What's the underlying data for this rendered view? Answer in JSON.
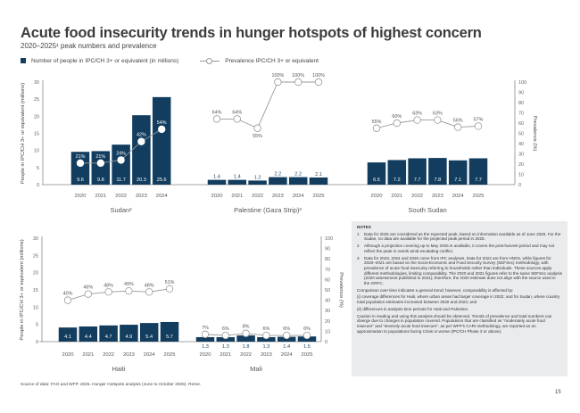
{
  "header": {
    "title": "Acute food insecurity trends in hunger hotspots of highest concern",
    "subtitle": "2020–2025¹ peak numbers and prevalence"
  },
  "legend": {
    "bars": "Number of people in IPC/CH 3+ or equivalent (in millions)",
    "line": "Prevalence IPC/CH 3+ or equivalent"
  },
  "colors": {
    "bar": "#123d5e",
    "line": "#999999"
  },
  "chart_data": [
    {
      "type": "bar+line",
      "title": "",
      "left_axis": {
        "label": "People in IPC/CH 3+ or equivalent (millions)",
        "ylim": [
          0,
          30
        ],
        "ticks": [
          "0",
          "5",
          "10",
          "15",
          "20",
          "25",
          "30"
        ]
      },
      "right_axis": {
        "label": "Prevalence (%)",
        "ylim": [
          0,
          100
        ],
        "ticks": [
          "0",
          "10",
          "20",
          "30",
          "40",
          "50",
          "60",
          "70",
          "80",
          "90",
          "100"
        ]
      },
      "groups": [
        {
          "name": "Sudan²",
          "years": [
            "2020",
            "2021",
            "2022",
            "2023",
            "2024"
          ],
          "people": [
            9.6,
            9.8,
            11.7,
            20.3,
            25.6
          ],
          "prevalence": [
            21,
            21,
            24,
            42,
            54
          ]
        },
        {
          "name": "Palestine (Gaza Strip)³",
          "years": [
            "2020",
            "2021",
            "2022",
            "2023",
            "2024",
            "2025"
          ],
          "people": [
            1.4,
            1.4,
            1.2,
            2.2,
            2.2,
            2.1
          ],
          "prevalence": [
            64,
            64,
            55,
            100,
            100,
            100
          ]
        },
        {
          "name": "South Sudan",
          "years": [
            "2020",
            "2021",
            "2022",
            "2023",
            "2024",
            "2025"
          ],
          "people": [
            6.5,
            7.2,
            7.7,
            7.8,
            7.1,
            7.7
          ],
          "prevalence": [
            55,
            60,
            63,
            63,
            56,
            57
          ]
        }
      ]
    },
    {
      "type": "bar+line",
      "title": "",
      "left_axis": {
        "label": "People in IPC/CH 3+ or equivalent (millions)",
        "ylim": [
          0,
          30
        ],
        "ticks": [
          "0",
          "5",
          "10",
          "15",
          "20",
          "25",
          "30"
        ]
      },
      "right_axis": {
        "label": "Prevalence (%)",
        "ylim": [
          0,
          100
        ],
        "ticks": [
          "0",
          "10",
          "20",
          "30",
          "40",
          "50",
          "60",
          "70",
          "80",
          "90",
          "100"
        ]
      },
      "groups": [
        {
          "name": "Haiti",
          "years": [
            "2020",
            "2021",
            "2022",
            "2023",
            "2024",
            "2025"
          ],
          "people": [
            4.1,
            4.4,
            4.7,
            4.9,
            5.4,
            5.7
          ],
          "prevalence": [
            40,
            46,
            48,
            49,
            48,
            51
          ]
        },
        {
          "name": "Mali",
          "years": [
            "2020",
            "2021",
            "2022",
            "2023",
            "2024",
            "2025"
          ],
          "people": [
            1.3,
            1.3,
            1.8,
            1.3,
            1.4,
            1.5
          ],
          "prevalence": [
            7,
            6,
            8,
            6,
            6,
            6
          ]
        }
      ]
    }
  ],
  "notes": {
    "title": "NOTES",
    "items": [
      {
        "n": "1",
        "text": "Data for 2025 are considered as the expected peak, based on information available as of June 2025. For the Sudan, no data are available for the projected peak period in 2025."
      },
      {
        "n": "2",
        "text": "Although a projection covering up to May 2025 is available, it covers the post-harvest period and may not reflect the peak in needs amid escalating conflict."
      },
      {
        "n": "3",
        "text": "Data for 2023, 2024 and 2025 come from IPC analyses. Data for 2022 are from HNOs, while figures for 2020–2021 are based on the Socio-Economic and Food Security Survey (SEFSec) methodology, with prevalence of acute food insecurity referring to households rather than individuals. These sources apply different methodologies, limiting comparability. The 2020 and 2021 figures refer to the same SEFSec analysis (2020 assessment published in 2021); therefore, the 2020 estimate does not align with the source used in the GRFC."
      }
    ],
    "comparison": "Comparison over time indicates a general trend; however, comparability is affected by:",
    "i": "(i)  coverage differences for Haiti, where urban areas had larger coverage in 2022; and for Sudan, where country total population estimates increased between 2020 and 2023; and",
    "ii": "(ii)  differences in analysis time periods for Haiti and Palestine.",
    "caution": "Caution in reading and using this analysis should be observed. Trends of prevalence and total numbers can diverge due to changes in population covered. Populations that are classified as \"moderately acute food insecure\" and \"severely acute food insecure\", as per WFP's CARI methodology, are reported as an approximation to populations facing Crisis or worse (IPC/CH Phase 3 or above)."
  },
  "source": "Source of data: FAO and WFP. 2025. Hunger Hotspots analysis (June to October 2025). Rome.",
  "page_number": "15"
}
